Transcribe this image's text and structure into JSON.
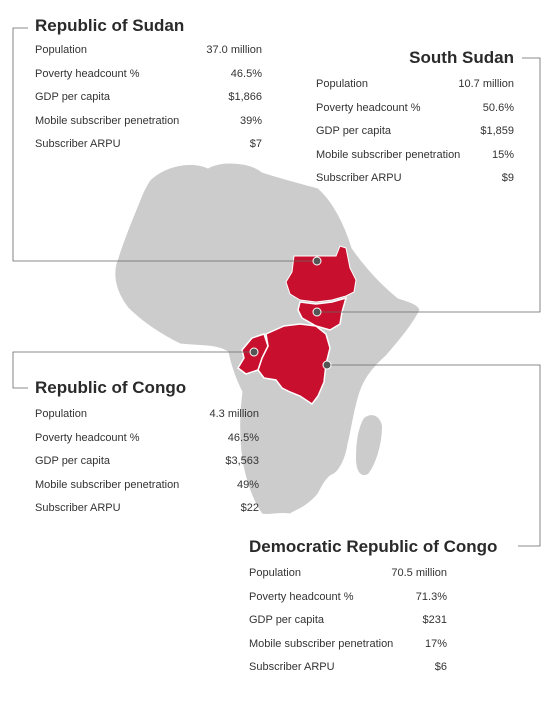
{
  "colors": {
    "land": "#cccccc",
    "highlight": "#c8102e",
    "leader": "#666666",
    "dot": "#555555"
  },
  "countries": [
    {
      "key": "sudan",
      "title": "Republic of Sudan",
      "stats": [
        {
          "label": "Population",
          "value": "37.0 million"
        },
        {
          "label": "Poverty headcount %",
          "value": "46.5%"
        },
        {
          "label": "GDP per capita",
          "value": "$1,866"
        },
        {
          "label": "Mobile subscriber penetration",
          "value": "39%"
        },
        {
          "label": "Subscriber ARPU",
          "value": "$7"
        }
      ]
    },
    {
      "key": "south-sudan",
      "title": "South Sudan",
      "stats": [
        {
          "label": "Population",
          "value": "10.7 million"
        },
        {
          "label": "Poverty headcount %",
          "value": "50.6%"
        },
        {
          "label": "GDP per capita",
          "value": "$1,859"
        },
        {
          "label": "Mobile subscriber penetration",
          "value": "15%"
        },
        {
          "label": "Subscriber ARPU",
          "value": "$9"
        }
      ]
    },
    {
      "key": "congo",
      "title": "Republic of Congo",
      "stats": [
        {
          "label": "Population",
          "value": "4.3 million"
        },
        {
          "label": "Poverty headcount %",
          "value": "46.5%"
        },
        {
          "label": "GDP per capita",
          "value": "$3,563"
        },
        {
          "label": "Mobile subscriber penetration",
          "value": "49%"
        },
        {
          "label": "Subscriber ARPU",
          "value": "$22"
        }
      ]
    },
    {
      "key": "drc",
      "title": "Democratic Republic of Congo",
      "stats": [
        {
          "label": "Population",
          "value": "70.5 million"
        },
        {
          "label": "Poverty headcount %",
          "value": "71.3%"
        },
        {
          "label": "GDP per capita",
          "value": "$231"
        },
        {
          "label": "Mobile subscriber penetration",
          "value": "17%"
        },
        {
          "label": "Subscriber ARPU",
          "value": "$6"
        }
      ]
    }
  ]
}
